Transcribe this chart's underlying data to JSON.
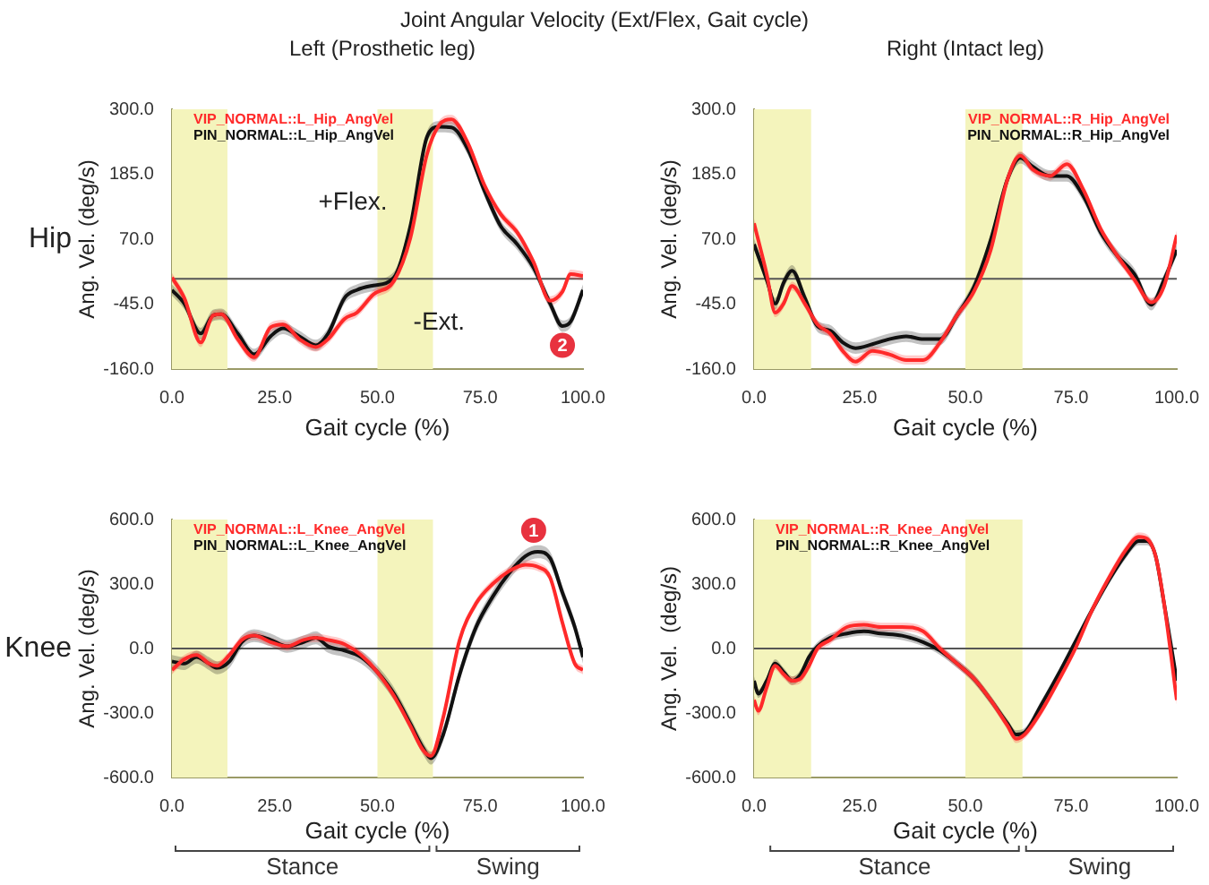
{
  "chart_data": [
    {
      "type": "line",
      "title": "Joint Angular Velocity (Ext/Flex, Gait cycle)",
      "subtitle": "Left (Prosthetic leg)",
      "xlabel": "Gait cycle (%)",
      "ylabel": "Ang. Vel. (deg/s)",
      "xlim": [
        0,
        100
      ],
      "xticks": [
        {
          "value": 0,
          "label": "0.0"
        },
        {
          "value": 25,
          "label": "25.0"
        },
        {
          "value": 50,
          "label": "50.0"
        },
        {
          "value": 75,
          "label": "75.0"
        },
        {
          "value": 100,
          "label": "100.0"
        }
      ],
      "ylim": [
        -160,
        300
      ],
      "yticks": [
        {
          "value": -160,
          "label": "-160.0"
        },
        {
          "value": -45,
          "label": "-45.0"
        },
        {
          "value": 70,
          "label": "70.0"
        },
        {
          "value": 185,
          "label": "185.0"
        },
        {
          "value": 300,
          "label": "300.0"
        }
      ],
      "legend": "top left",
      "ref_lines": [
        {
          "axis": "y",
          "value": 0,
          "color": "#555555"
        }
      ],
      "bands": [
        {
          "axis": "x",
          "from": 0,
          "to": 13.5,
          "color": "#f4f4bc"
        },
        {
          "axis": "x",
          "from": 50,
          "to": 63.5,
          "color": "#f4f4bc"
        }
      ],
      "annotations": [
        "Hip",
        "+Flex.",
        "-Ext.",
        {
          "text": "2",
          "x": 95,
          "y": -118
        }
      ],
      "series": [
        {
          "name": "VIP_NORMAL::L_Hip_AngVel",
          "color": "#ff2a2a",
          "x": [
            0,
            3,
            7,
            10,
            12,
            16,
            20,
            24,
            27,
            31,
            35,
            38,
            42,
            45,
            49,
            54,
            58,
            62,
            65,
            68,
            72,
            76,
            80,
            84,
            88,
            92,
            95,
            97,
            100
          ],
          "values": [
            2,
            -34,
            -113,
            -65,
            -63,
            -107,
            -139,
            -86,
            -81,
            -107,
            -121,
            -107,
            -71,
            -60,
            -28,
            -4,
            72,
            219,
            272,
            282,
            240,
            166,
            114,
            82,
            29,
            -39,
            -23,
            8,
            5
          ],
          "lower": [
            -6,
            -42,
            -121,
            -73,
            -71,
            -115,
            -147,
            -94,
            -89,
            -115,
            -129,
            -115,
            -79,
            -68,
            -36,
            -12,
            64,
            211,
            264,
            274,
            232,
            158,
            106,
            74,
            21,
            -47,
            -31,
            0,
            -3
          ],
          "upper": [
            10,
            -26,
            -105,
            -57,
            -55,
            -99,
            -131,
            -78,
            -73,
            -99,
            -113,
            -99,
            -63,
            -52,
            -20,
            4,
            80,
            227,
            280,
            290,
            248,
            174,
            122,
            90,
            37,
            -31,
            -15,
            16,
            13
          ]
        },
        {
          "name": "PIN_NORMAL::L_Hip_AngVel",
          "color": "#111111",
          "x": [
            0,
            3,
            7,
            10,
            12,
            16,
            20,
            24,
            27,
            31,
            35,
            38,
            42,
            45,
            49,
            54,
            58,
            62,
            65,
            68,
            72,
            76,
            80,
            84,
            88,
            92,
            95,
            97,
            100
          ],
          "values": [
            -20,
            -44,
            -97,
            -65,
            -63,
            -97,
            -134,
            -102,
            -88,
            -102,
            -118,
            -97,
            -34,
            -20,
            -12,
            2,
            93,
            250,
            269,
            268,
            229,
            156,
            93,
            61,
            19,
            -44,
            -84,
            -76,
            -20
          ],
          "lower": [
            -30,
            -54,
            -107,
            -75,
            -73,
            -107,
            -144,
            -112,
            -98,
            -112,
            -128,
            -107,
            -44,
            -30,
            -22,
            -8,
            83,
            240,
            259,
            258,
            219,
            146,
            83,
            51,
            9,
            -54,
            -94,
            -86,
            -30
          ],
          "upper": [
            -10,
            -34,
            -87,
            -55,
            -53,
            -87,
            -124,
            -92,
            -78,
            -92,
            -108,
            -87,
            -24,
            -10,
            -2,
            12,
            103,
            260,
            279,
            278,
            239,
            166,
            103,
            71,
            29,
            -34,
            -74,
            -66,
            -10
          ]
        }
      ]
    },
    {
      "type": "line",
      "subtitle": "Right (Intact leg)",
      "xlabel": "Gait cycle (%)",
      "ylabel": "Ang. Vel. (deg/s)",
      "xlim": [
        0,
        100
      ],
      "xticks": [
        {
          "value": 0,
          "label": "0.0"
        },
        {
          "value": 25,
          "label": "25.0"
        },
        {
          "value": 50,
          "label": "50.0"
        },
        {
          "value": 75,
          "label": "75.0"
        },
        {
          "value": 100,
          "label": "100.0"
        }
      ],
      "ylim": [
        -160,
        300
      ],
      "yticks": [
        {
          "value": -160,
          "label": "-160.0"
        },
        {
          "value": -45,
          "label": "-45.0"
        },
        {
          "value": 70,
          "label": "70.0"
        },
        {
          "value": 185,
          "label": "185.0"
        },
        {
          "value": 300,
          "label": "300.0"
        }
      ],
      "legend": "top right",
      "ref_lines": [
        {
          "axis": "y",
          "value": 0,
          "color": "#555555"
        }
      ],
      "bands": [
        {
          "axis": "x",
          "from": 0,
          "to": 13.5,
          "color": "#f4f4bc"
        },
        {
          "axis": "x",
          "from": 50,
          "to": 63.5,
          "color": "#f4f4bc"
        }
      ],
      "series": [
        {
          "name": "VIP_NORMAL::R_Hip_AngVel",
          "color": "#ff2a2a",
          "x": [
            0,
            3,
            5,
            7,
            9,
            12,
            15,
            18,
            21,
            24,
            28,
            32,
            36,
            40,
            44,
            48,
            52,
            56,
            60,
            63,
            66,
            70,
            74,
            78,
            82,
            86,
            90,
            94,
            97,
            100
          ],
          "values": [
            98,
            8,
            -60,
            -44,
            -13,
            -44,
            -81,
            -97,
            -128,
            -147,
            -128,
            -134,
            -144,
            -144,
            -113,
            -65,
            -23,
            51,
            177,
            218,
            193,
            182,
            203,
            156,
            88,
            40,
            -2,
            -42,
            -13,
            77
          ],
          "lower": [
            90,
            0,
            -68,
            -52,
            -21,
            -52,
            -89,
            -105,
            -136,
            -155,
            -136,
            -142,
            -152,
            -152,
            -121,
            -73,
            -31,
            43,
            169,
            210,
            185,
            174,
            195,
            148,
            80,
            32,
            -10,
            -50,
            -21,
            69
          ],
          "upper": [
            106,
            16,
            -52,
            -36,
            -5,
            -36,
            -73,
            -89,
            -120,
            -139,
            -120,
            -126,
            -136,
            -136,
            -105,
            -57,
            -15,
            59,
            185,
            226,
            201,
            190,
            211,
            164,
            96,
            48,
            6,
            -34,
            -5,
            85
          ]
        },
        {
          "name": "PIN_NORMAL::R_Hip_AngVel",
          "color": "#111111",
          "x": [
            0,
            3,
            5,
            7,
            9,
            12,
            15,
            18,
            21,
            24,
            28,
            32,
            36,
            40,
            44,
            48,
            52,
            56,
            60,
            63,
            66,
            70,
            74,
            78,
            82,
            86,
            90,
            94,
            97,
            100
          ],
          "values": [
            61,
            -2,
            -44,
            -7,
            14,
            -34,
            -84,
            -92,
            -113,
            -123,
            -116,
            -107,
            -102,
            -107,
            -107,
            -65,
            -15,
            69,
            177,
            214,
            198,
            182,
            182,
            145,
            82,
            40,
            8,
            -46,
            -2,
            51
          ],
          "lower": [
            51,
            -12,
            -54,
            -17,
            4,
            -44,
            -94,
            -102,
            -123,
            -133,
            -126,
            -117,
            -112,
            -117,
            -117,
            -75,
            -25,
            59,
            167,
            204,
            188,
            172,
            172,
            135,
            72,
            30,
            -2,
            -56,
            -12,
            41
          ],
          "upper": [
            71,
            8,
            -34,
            3,
            24,
            -24,
            -74,
            -82,
            -103,
            -113,
            -106,
            -97,
            -92,
            -97,
            -97,
            -55,
            -5,
            79,
            187,
            224,
            208,
            192,
            192,
            155,
            92,
            50,
            18,
            -36,
            8,
            61
          ]
        }
      ]
    },
    {
      "type": "line",
      "xlabel": "Gait cycle (%)",
      "ylabel": "Ang. Vel. (deg/s)",
      "xlim": [
        0,
        100
      ],
      "xticks": [
        {
          "value": 0,
          "label": "0.0"
        },
        {
          "value": 25,
          "label": "25.0"
        },
        {
          "value": 50,
          "label": "50.0"
        },
        {
          "value": 75,
          "label": "75.0"
        },
        {
          "value": 100,
          "label": "100.0"
        }
      ],
      "ylim": [
        -600,
        600
      ],
      "yticks": [
        {
          "value": -600,
          "label": "-600.0"
        },
        {
          "value": -300,
          "label": "-300.0"
        },
        {
          "value": 0,
          "label": "0.0"
        },
        {
          "value": 300,
          "label": "300.0"
        },
        {
          "value": 600,
          "label": "600.0"
        }
      ],
      "legend": "top left",
      "ref_lines": [
        {
          "axis": "y",
          "value": 0,
          "color": "#555555"
        }
      ],
      "bands": [
        {
          "axis": "x",
          "from": 0,
          "to": 13.5,
          "color": "#f4f4bc"
        },
        {
          "axis": "x",
          "from": 50,
          "to": 63.5,
          "color": "#f4f4bc"
        }
      ],
      "annotations": [
        "Knee",
        {
          "text": "1",
          "x": 88,
          "y": 550
        },
        "Stance",
        "Swing"
      ],
      "series": [
        {
          "name": "VIP_NORMAL::L_Knee_AngVel",
          "color": "#ff2a2a",
          "x": [
            0,
            3,
            6,
            9,
            11,
            14,
            17,
            20,
            24,
            28,
            32,
            35,
            38,
            42,
            46,
            50,
            54,
            58,
            61,
            63,
            66,
            70,
            74,
            78,
            82,
            86,
            89,
            92,
            95,
            98,
            100
          ],
          "values": [
            -100,
            -50,
            -30,
            -70,
            -80,
            -30,
            40,
            60,
            30,
            10,
            40,
            50,
            40,
            20,
            -30,
            -110,
            -220,
            -360,
            -470,
            -500,
            -320,
            40,
            210,
            300,
            360,
            390,
            380,
            330,
            120,
            -70,
            -100
          ],
          "lower": [
            -120,
            -70,
            -50,
            -90,
            -100,
            -50,
            20,
            40,
            10,
            -10,
            20,
            30,
            20,
            0,
            -50,
            -130,
            -240,
            -380,
            -490,
            -520,
            -340,
            20,
            190,
            280,
            340,
            370,
            360,
            310,
            100,
            -90,
            -120
          ],
          "upper": [
            -80,
            -30,
            -10,
            -50,
            -60,
            -10,
            60,
            80,
            50,
            30,
            60,
            70,
            60,
            40,
            -10,
            -90,
            -200,
            -340,
            -450,
            -480,
            -300,
            60,
            230,
            320,
            380,
            410,
            400,
            350,
            140,
            -50,
            -80
          ]
        },
        {
          "name": "PIN_NORMAL::L_Knee_AngVel",
          "color": "#111111",
          "x": [
            0,
            3,
            6,
            9,
            11,
            14,
            17,
            20,
            24,
            28,
            32,
            35,
            38,
            42,
            46,
            50,
            54,
            58,
            61,
            63,
            66,
            70,
            74,
            78,
            82,
            86,
            89,
            92,
            95,
            98,
            100
          ],
          "values": [
            -60,
            -70,
            -40,
            -70,
            -90,
            -60,
            30,
            60,
            40,
            10,
            30,
            50,
            10,
            -10,
            -40,
            -110,
            -210,
            -350,
            -460,
            -510,
            -400,
            -120,
            100,
            240,
            350,
            430,
            450,
            420,
            260,
            100,
            -40
          ],
          "lower": [
            -90,
            -100,
            -70,
            -100,
            -120,
            -90,
            0,
            30,
            10,
            -20,
            0,
            20,
            -20,
            -40,
            -70,
            -140,
            -240,
            -380,
            -490,
            -540,
            -430,
            -150,
            70,
            210,
            320,
            400,
            420,
            390,
            230,
            70,
            -70
          ],
          "upper": [
            -30,
            -40,
            -10,
            -40,
            -60,
            -30,
            60,
            90,
            70,
            40,
            60,
            80,
            40,
            20,
            -10,
            -80,
            -180,
            -320,
            -430,
            -480,
            -370,
            -90,
            130,
            270,
            380,
            460,
            480,
            450,
            290,
            130,
            -10
          ]
        }
      ]
    },
    {
      "type": "line",
      "xlabel": "Gait cycle (%)",
      "ylabel": "Ang. Vel.  (deg/s)",
      "xlim": [
        0,
        100
      ],
      "xticks": [
        {
          "value": 0,
          "label": "0.0"
        },
        {
          "value": 25,
          "label": "25.0"
        },
        {
          "value": 50,
          "label": "50.0"
        },
        {
          "value": 75,
          "label": "75.0"
        },
        {
          "value": 100,
          "label": "100.0"
        }
      ],
      "ylim": [
        -600,
        600
      ],
      "yticks": [
        {
          "value": -600,
          "label": "-600.0"
        },
        {
          "value": -300,
          "label": "-300.0"
        },
        {
          "value": 0,
          "label": "0.0"
        },
        {
          "value": 300,
          "label": "300.0"
        },
        {
          "value": 600,
          "label": "600.0"
        }
      ],
      "legend": "top left",
      "ref_lines": [
        {
          "axis": "y",
          "value": 0,
          "color": "#555555"
        }
      ],
      "bands": [
        {
          "axis": "x",
          "from": 0,
          "to": 13.5,
          "color": "#f4f4bc"
        },
        {
          "axis": "x",
          "from": 50,
          "to": 63.5,
          "color": "#f4f4bc"
        }
      ],
      "annotations": [
        "Stance",
        "Swing"
      ],
      "series": [
        {
          "name": "VIP_NORMAL::R_Knee_AngVel",
          "color": "#ff2a2a",
          "x": [
            0,
            1,
            3,
            5,
            7,
            9,
            11,
            13,
            15,
            18,
            22,
            26,
            30,
            35,
            40,
            44,
            48,
            52,
            56,
            60,
            62,
            64,
            68,
            72,
            76,
            80,
            84,
            88,
            91,
            93,
            95,
            97,
            100
          ],
          "values": [
            -240,
            -290,
            -180,
            -80,
            -120,
            -150,
            -140,
            -80,
            0,
            40,
            100,
            110,
            100,
            100,
            80,
            0,
            -70,
            -140,
            -240,
            -360,
            -420,
            -400,
            -290,
            -150,
            0,
            180,
            330,
            460,
            520,
            510,
            430,
            210,
            -240
          ],
          "lower": [
            -260,
            -310,
            -200,
            -100,
            -140,
            -170,
            -160,
            -100,
            -20,
            20,
            80,
            90,
            80,
            80,
            60,
            -20,
            -90,
            -160,
            -260,
            -380,
            -440,
            -420,
            -310,
            -170,
            -20,
            160,
            310,
            440,
            500,
            490,
            410,
            190,
            -260
          ],
          "upper": [
            -220,
            -270,
            -160,
            -60,
            -100,
            -130,
            -120,
            -60,
            20,
            60,
            120,
            130,
            120,
            120,
            100,
            20,
            -50,
            -120,
            -220,
            -340,
            -400,
            -380,
            -270,
            -130,
            20,
            200,
            350,
            480,
            540,
            530,
            450,
            230,
            -220
          ]
        },
        {
          "name": "PIN_NORMAL::R_Knee_AngVel",
          "color": "#111111",
          "x": [
            0,
            1,
            3,
            5,
            7,
            9,
            11,
            13,
            15,
            18,
            22,
            26,
            30,
            35,
            40,
            44,
            48,
            52,
            56,
            60,
            62,
            64,
            68,
            72,
            76,
            80,
            84,
            88,
            91,
            93,
            95,
            97,
            100
          ],
          "values": [
            -150,
            -210,
            -150,
            -70,
            -110,
            -150,
            -120,
            -40,
            10,
            50,
            70,
            80,
            70,
            60,
            30,
            -10,
            -70,
            -140,
            -240,
            -350,
            -400,
            -390,
            -260,
            -120,
            30,
            180,
            320,
            440,
            500,
            500,
            430,
            210,
            -150
          ],
          "lower": [
            -170,
            -230,
            -170,
            -90,
            -130,
            -170,
            -140,
            -60,
            -10,
            30,
            50,
            60,
            50,
            40,
            10,
            -30,
            -90,
            -160,
            -260,
            -370,
            -420,
            -410,
            -280,
            -140,
            10,
            160,
            300,
            420,
            480,
            480,
            410,
            190,
            -170
          ],
          "upper": [
            -130,
            -190,
            -130,
            -50,
            -90,
            -130,
            -100,
            -20,
            30,
            70,
            90,
            100,
            90,
            80,
            50,
            10,
            -50,
            -120,
            -220,
            -330,
            -380,
            -370,
            -240,
            -100,
            50,
            200,
            340,
            460,
            520,
            520,
            450,
            230,
            -130
          ]
        }
      ]
    }
  ]
}
